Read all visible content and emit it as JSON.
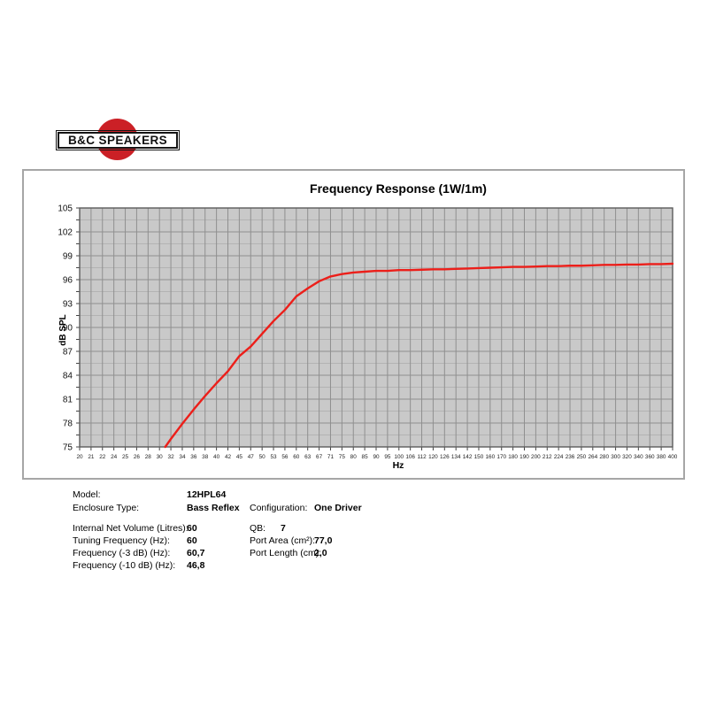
{
  "logo": {
    "text": "B&C SPEAKERS",
    "circle_color": "#cb2026"
  },
  "chart_data": {
    "type": "line",
    "title": "Frequency Response (1W/1m)",
    "xlabel": "Hz",
    "ylabel": "dB SPL",
    "x_scale": "log",
    "grid": true,
    "legend": false,
    "x_ticks": [
      20,
      21,
      22,
      24,
      25,
      26,
      28,
      30,
      32,
      34,
      36,
      38,
      40,
      42,
      45,
      47,
      50,
      53,
      56,
      60,
      63,
      67,
      71,
      75,
      80,
      85,
      90,
      95,
      100,
      106,
      112,
      120,
      126,
      134,
      142,
      150,
      160,
      170,
      180,
      190,
      200,
      212,
      224,
      236,
      250,
      264,
      280,
      300,
      320,
      340,
      360,
      380,
      400
    ],
    "ylim": [
      75,
      105
    ],
    "y_tick_step": 3,
    "y_minor_step": 1.5,
    "colors": {
      "curve": "#ec1f1a",
      "plot_bg": "#c9c9c9",
      "grid_major": "#8f8f8f",
      "grid_minor": "#b3b3b3",
      "plot_border": "#5c5c5c",
      "tick": "#444444"
    },
    "series": [
      {
        "name": "SPL (1W/1m)",
        "color": "#ec1f1a",
        "points": [
          [
            31,
            75.0
          ],
          [
            32,
            76.0
          ],
          [
            34,
            77.9
          ],
          [
            36,
            79.7
          ],
          [
            38,
            81.4
          ],
          [
            40,
            83.0
          ],
          [
            42,
            84.5
          ],
          [
            45,
            86.4
          ],
          [
            47,
            87.6
          ],
          [
            50,
            89.2
          ],
          [
            53,
            90.8
          ],
          [
            56,
            92.2
          ],
          [
            60,
            93.9
          ],
          [
            63,
            94.9
          ],
          [
            67,
            95.8
          ],
          [
            71,
            96.4
          ],
          [
            75,
            96.7
          ],
          [
            80,
            96.9
          ],
          [
            85,
            97.0
          ],
          [
            90,
            97.1
          ],
          [
            95,
            97.1
          ],
          [
            100,
            97.2
          ],
          [
            106,
            97.2
          ],
          [
            112,
            97.25
          ],
          [
            120,
            97.3
          ],
          [
            126,
            97.3
          ],
          [
            134,
            97.35
          ],
          [
            142,
            97.4
          ],
          [
            150,
            97.45
          ],
          [
            160,
            97.5
          ],
          [
            170,
            97.55
          ],
          [
            180,
            97.6
          ],
          [
            190,
            97.6
          ],
          [
            200,
            97.65
          ],
          [
            212,
            97.7
          ],
          [
            224,
            97.7
          ],
          [
            236,
            97.75
          ],
          [
            250,
            97.75
          ],
          [
            264,
            97.8
          ],
          [
            280,
            97.85
          ],
          [
            300,
            97.85
          ],
          [
            320,
            97.9
          ],
          [
            340,
            97.9
          ],
          [
            360,
            97.95
          ],
          [
            380,
            97.95
          ],
          [
            400,
            98.0
          ]
        ]
      }
    ]
  },
  "specs": {
    "rows_left": [
      {
        "label": "Model:",
        "value": "12HPL64"
      },
      {
        "label": "Enclosure Type:",
        "value": "Bass Reflex"
      },
      {
        "label": "Internal Net Volume (Litres):",
        "value": "60"
      },
      {
        "label": "Tuning Frequency (Hz):",
        "value": "60"
      },
      {
        "label": "Frequency (-3 dB) (Hz):",
        "value": "60,7"
      },
      {
        "label": "Frequency (-10 dB) (Hz):",
        "value": "46,8"
      }
    ],
    "rows_right": [
      {
        "label": "Configuration:",
        "value": "One Driver"
      },
      {
        "label": "QB:",
        "value": "7"
      },
      {
        "label": "Port Area (cm²):",
        "value": "77,0"
      },
      {
        "label": "Port Length (cm):",
        "value": "2,0"
      }
    ]
  }
}
